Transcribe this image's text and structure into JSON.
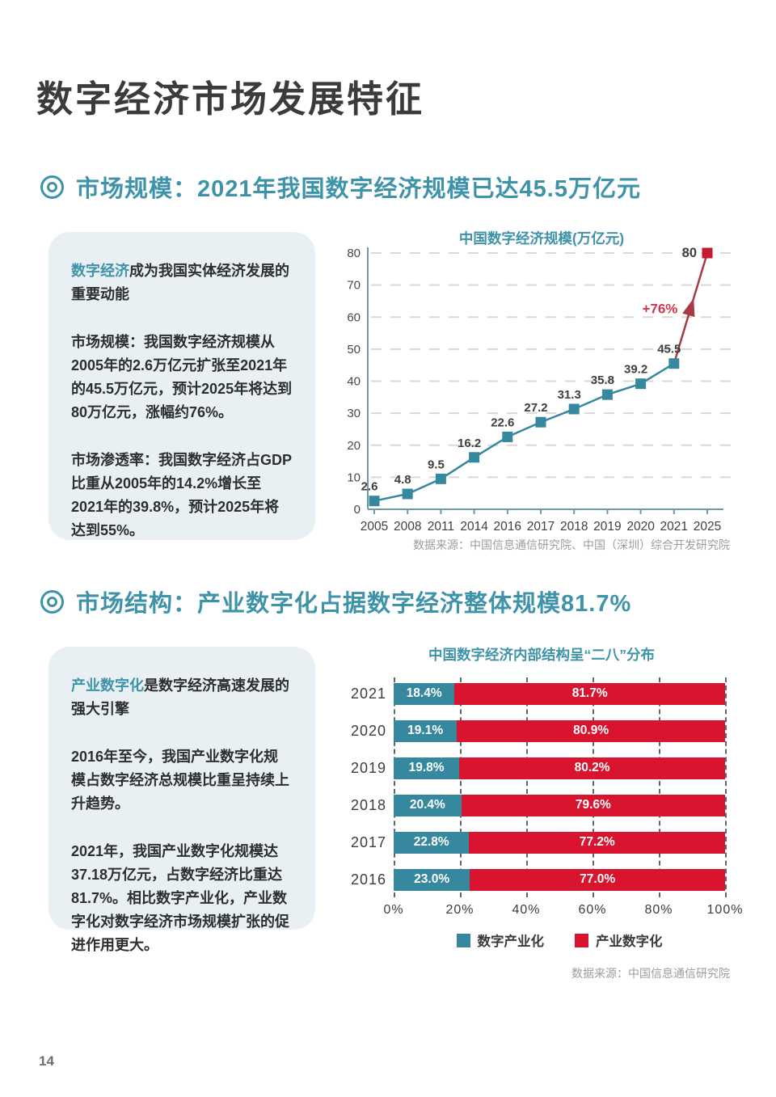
{
  "page": {
    "title": "数字经济市场发展特征",
    "number": "14"
  },
  "colors": {
    "accent_teal": "#3f93a8",
    "series_teal": "#35889e",
    "series_red": "#d8142e",
    "forecast_red": "#a63b44",
    "annotation_red": "#d3354c",
    "card_bg": "#e9f0f4"
  },
  "section1": {
    "heading": "市场规模：2021年我国数字经济规模已达45.5万亿元",
    "card": {
      "p1": {
        "highlight": "数字经济",
        "rest": "成为我国实体经济发展的重要动能"
      },
      "p2": {
        "lead": "市场规模：",
        "rest": "我国数字经济规模从2005年的2.6万亿元扩张至2021年的45.5万亿元，预计2025年将达到80万亿元，涨幅约76%。"
      },
      "p3": {
        "lead": "市场渗透率：",
        "rest": "我国数字经济占GDP比重从2005年的14.2%增长至2021年的39.8%，预计2025年将达到55%。"
      }
    },
    "source": "数据来源：中国信息通信研究院、中国（深圳）综合开发研究院"
  },
  "section2": {
    "heading": "市场结构：产业数字化占据数字经济整体规模81.7%",
    "card": {
      "p1": {
        "highlight": "产业数字化",
        "rest": "是数字经济高速发展的强大引擎"
      },
      "p2": {
        "lead": "",
        "rest": "2016年至今，我国产业数字化规模占数字经济总规模比重呈持续上升趋势。"
      },
      "p3": {
        "lead": "2021年，我国产业数字化规模达37.18万亿元，占数字经济比重达81.7%。",
        "rest": "相比数字产业化，产业数字化对数字经济市场规模扩张的促进作用更大。"
      }
    },
    "source": "数据来源：中国信息通信研究院"
  },
  "chart_data": [
    {
      "type": "line",
      "title": "中国数字经济规模(万亿元)",
      "x": [
        "2005",
        "2008",
        "2011",
        "2014",
        "2016",
        "2017",
        "2018",
        "2019",
        "2020",
        "2021",
        "2025"
      ],
      "values": [
        2.6,
        4.8,
        9.5,
        16.2,
        22.6,
        27.2,
        31.3,
        35.8,
        39.2,
        45.5,
        80
      ],
      "ylim": [
        0,
        80
      ],
      "yticks": [
        0,
        10,
        20,
        30,
        40,
        50,
        60,
        70,
        80
      ],
      "xlabel": "",
      "ylabel": "",
      "grid": true,
      "series_color": "#35889e",
      "forecast_color": "#a63b44",
      "forecast_marker_color": "#c41a30",
      "annotation": "+76%",
      "forecast_from_index": 9,
      "marker": "square"
    },
    {
      "type": "bar",
      "orientation": "horizontal-stacked",
      "title": "中国数字经济内部结构呈“二八”分布",
      "categories": [
        "2021",
        "2020",
        "2019",
        "2018",
        "2017",
        "2016"
      ],
      "series": [
        {
          "name": "数字产业化",
          "color": "#35889e",
          "values": [
            18.4,
            19.1,
            19.8,
            20.4,
            22.8,
            23.0
          ]
        },
        {
          "name": "产业数字化",
          "color": "#d8142e",
          "values": [
            81.7,
            80.9,
            80.2,
            79.6,
            77.2,
            77.0
          ]
        }
      ],
      "value_suffix": "%",
      "xticks": [
        "0%",
        "20%",
        "40%",
        "60%",
        "80%",
        "100%"
      ],
      "xlim": [
        0,
        100
      ],
      "grid": true,
      "legend_position": "bottom"
    }
  ]
}
